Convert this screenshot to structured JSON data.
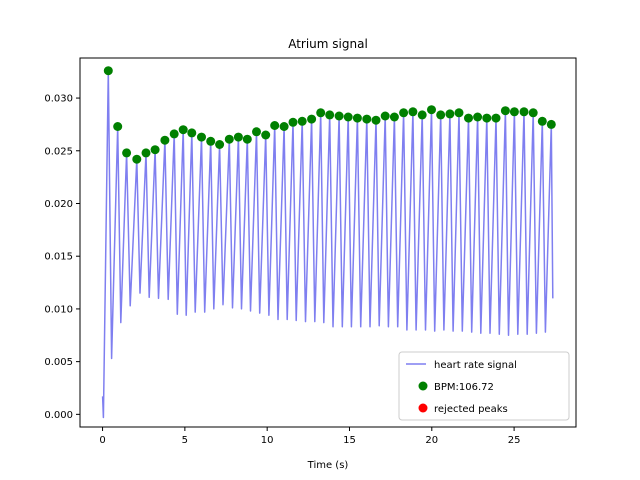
{
  "chart_data": {
    "type": "line",
    "title": "Atrium signal",
    "xlabel": "Time (s)",
    "ylabel": "",
    "xlim": [
      -1.37,
      28.76
    ],
    "ylim": [
      -0.0012,
      0.0338
    ],
    "xticks": [
      0,
      5,
      10,
      15,
      20,
      25
    ],
    "xtick_labels": [
      "0",
      "5",
      "10",
      "15",
      "20",
      "25"
    ],
    "yticks": [
      0.0,
      0.005,
      0.01,
      0.015,
      0.02,
      0.025,
      0.03
    ],
    "ytick_labels": [
      "0.000",
      "0.005",
      "0.010",
      "0.015",
      "0.020",
      "0.025",
      "0.030"
    ],
    "grid": false,
    "legend_position": "lower right",
    "colors": {
      "signal": "#7f7ff0",
      "peaks": "#008000",
      "rejected": "#ff0000"
    },
    "series": [
      {
        "name": "heart rate signal",
        "kind": "line",
        "start": [
          0.0,
          0.0017
        ],
        "start_dip": [
          0.05,
          -0.0003
        ],
        "peaks": {
          "x": [
            0.35,
            0.92,
            1.46,
            2.08,
            2.64,
            3.19,
            3.79,
            4.35,
            4.9,
            5.42,
            6.01,
            6.57,
            7.11,
            7.7,
            8.25,
            8.79,
            9.35,
            9.91,
            10.46,
            11.03,
            11.57,
            12.13,
            12.7,
            13.25,
            13.8,
            14.37,
            14.92,
            15.48,
            16.05,
            16.61,
            17.17,
            17.73,
            18.29,
            18.85,
            19.42,
            19.98,
            20.54,
            21.1,
            21.65,
            22.23,
            22.78,
            23.34,
            23.9,
            24.47,
            25.02,
            25.6,
            26.16,
            26.71,
            27.26
          ],
          "y": [
            0.0326,
            0.0273,
            0.0248,
            0.0242,
            0.0248,
            0.0251,
            0.026,
            0.0266,
            0.027,
            0.0267,
            0.0263,
            0.0259,
            0.0256,
            0.0261,
            0.0263,
            0.0261,
            0.0268,
            0.0265,
            0.0274,
            0.0273,
            0.0277,
            0.0278,
            0.028,
            0.0286,
            0.0284,
            0.0283,
            0.0282,
            0.0281,
            0.028,
            0.0279,
            0.0283,
            0.0282,
            0.0286,
            0.0287,
            0.0284,
            0.0289,
            0.0284,
            0.0285,
            0.0286,
            0.0281,
            0.0282,
            0.0281,
            0.0281,
            0.0288,
            0.0287,
            0.0287,
            0.0286,
            0.0278,
            0.0275
          ]
        },
        "troughs": [
          0.0053,
          0.0087,
          0.0103,
          0.0115,
          0.0111,
          0.011,
          0.0109,
          0.0095,
          0.0094,
          0.0097,
          0.0097,
          0.01,
          0.0104,
          0.0101,
          0.01,
          0.0098,
          0.0096,
          0.0094,
          0.009,
          0.009,
          0.0089,
          0.0088,
          0.0088,
          0.0087,
          0.0083,
          0.0083,
          0.0083,
          0.0083,
          0.0083,
          0.0084,
          0.0083,
          0.0083,
          0.008,
          0.008,
          0.008,
          0.0079,
          0.008,
          0.0079,
          0.0079,
          0.0078,
          0.0077,
          0.0077,
          0.0076,
          0.0075,
          0.0076,
          0.0076,
          0.0077,
          0.0078
        ],
        "end": [
          27.35,
          0.011
        ]
      },
      {
        "name": "BPM:106.72",
        "kind": "scatter"
      },
      {
        "name": "rejected peaks",
        "kind": "scatter",
        "x": [],
        "y": []
      }
    ]
  }
}
